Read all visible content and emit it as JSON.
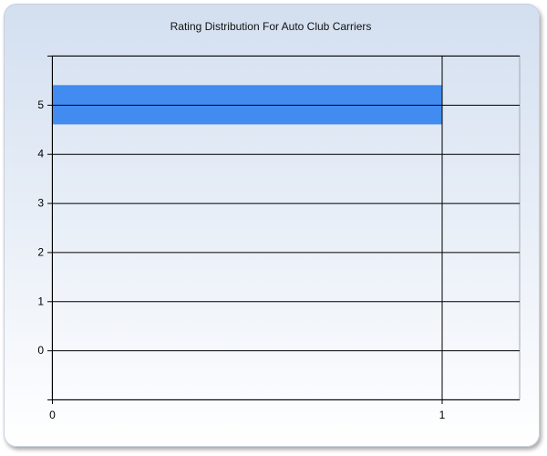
{
  "chart_data": {
    "type": "bar",
    "orientation": "horizontal",
    "title": "Rating Distribution For Auto Club Carriers",
    "categories": [
      "5"
    ],
    "values": [
      1
    ],
    "xlim": [
      0,
      1.2
    ],
    "ylim": [
      -1,
      6
    ],
    "xticks": [
      "0",
      "1"
    ],
    "yticks": [
      "0",
      "1",
      "2",
      "3",
      "4",
      "5"
    ],
    "grid": true,
    "legend": "none",
    "bar_color": "#428bf0"
  }
}
